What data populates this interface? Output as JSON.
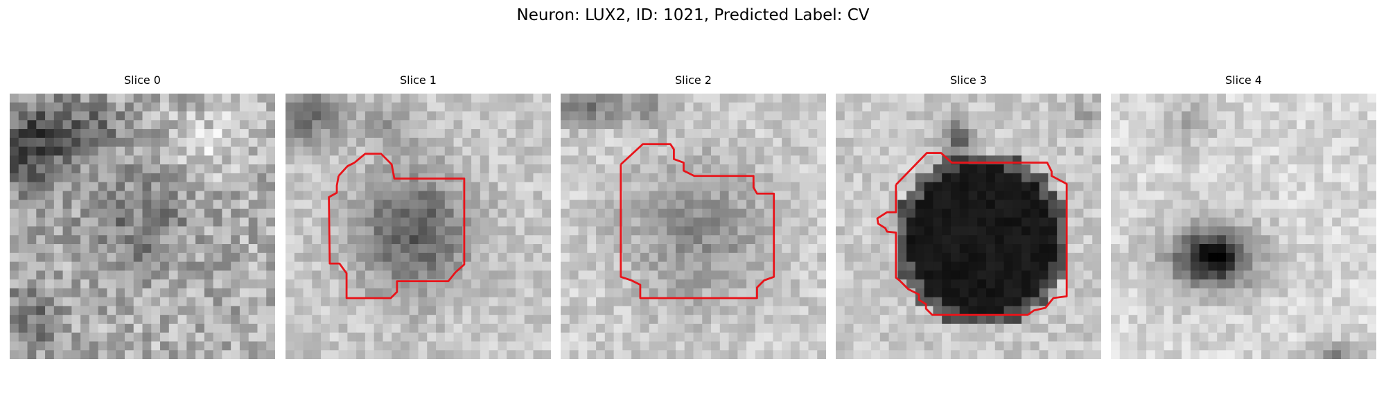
{
  "figure": {
    "title": "Neuron: LUX2, ID: 1021, Predicted Label: CV"
  },
  "contour_color": "#e8141a",
  "panels": [
    {
      "title": "Slice 0",
      "has_contour": false
    },
    {
      "title": "Slice 1",
      "has_contour": true
    },
    {
      "title": "Slice 2",
      "has_contour": true
    },
    {
      "title": "Slice 3",
      "has_contour": true
    },
    {
      "title": "Slice 4",
      "has_contour": false
    }
  ]
}
